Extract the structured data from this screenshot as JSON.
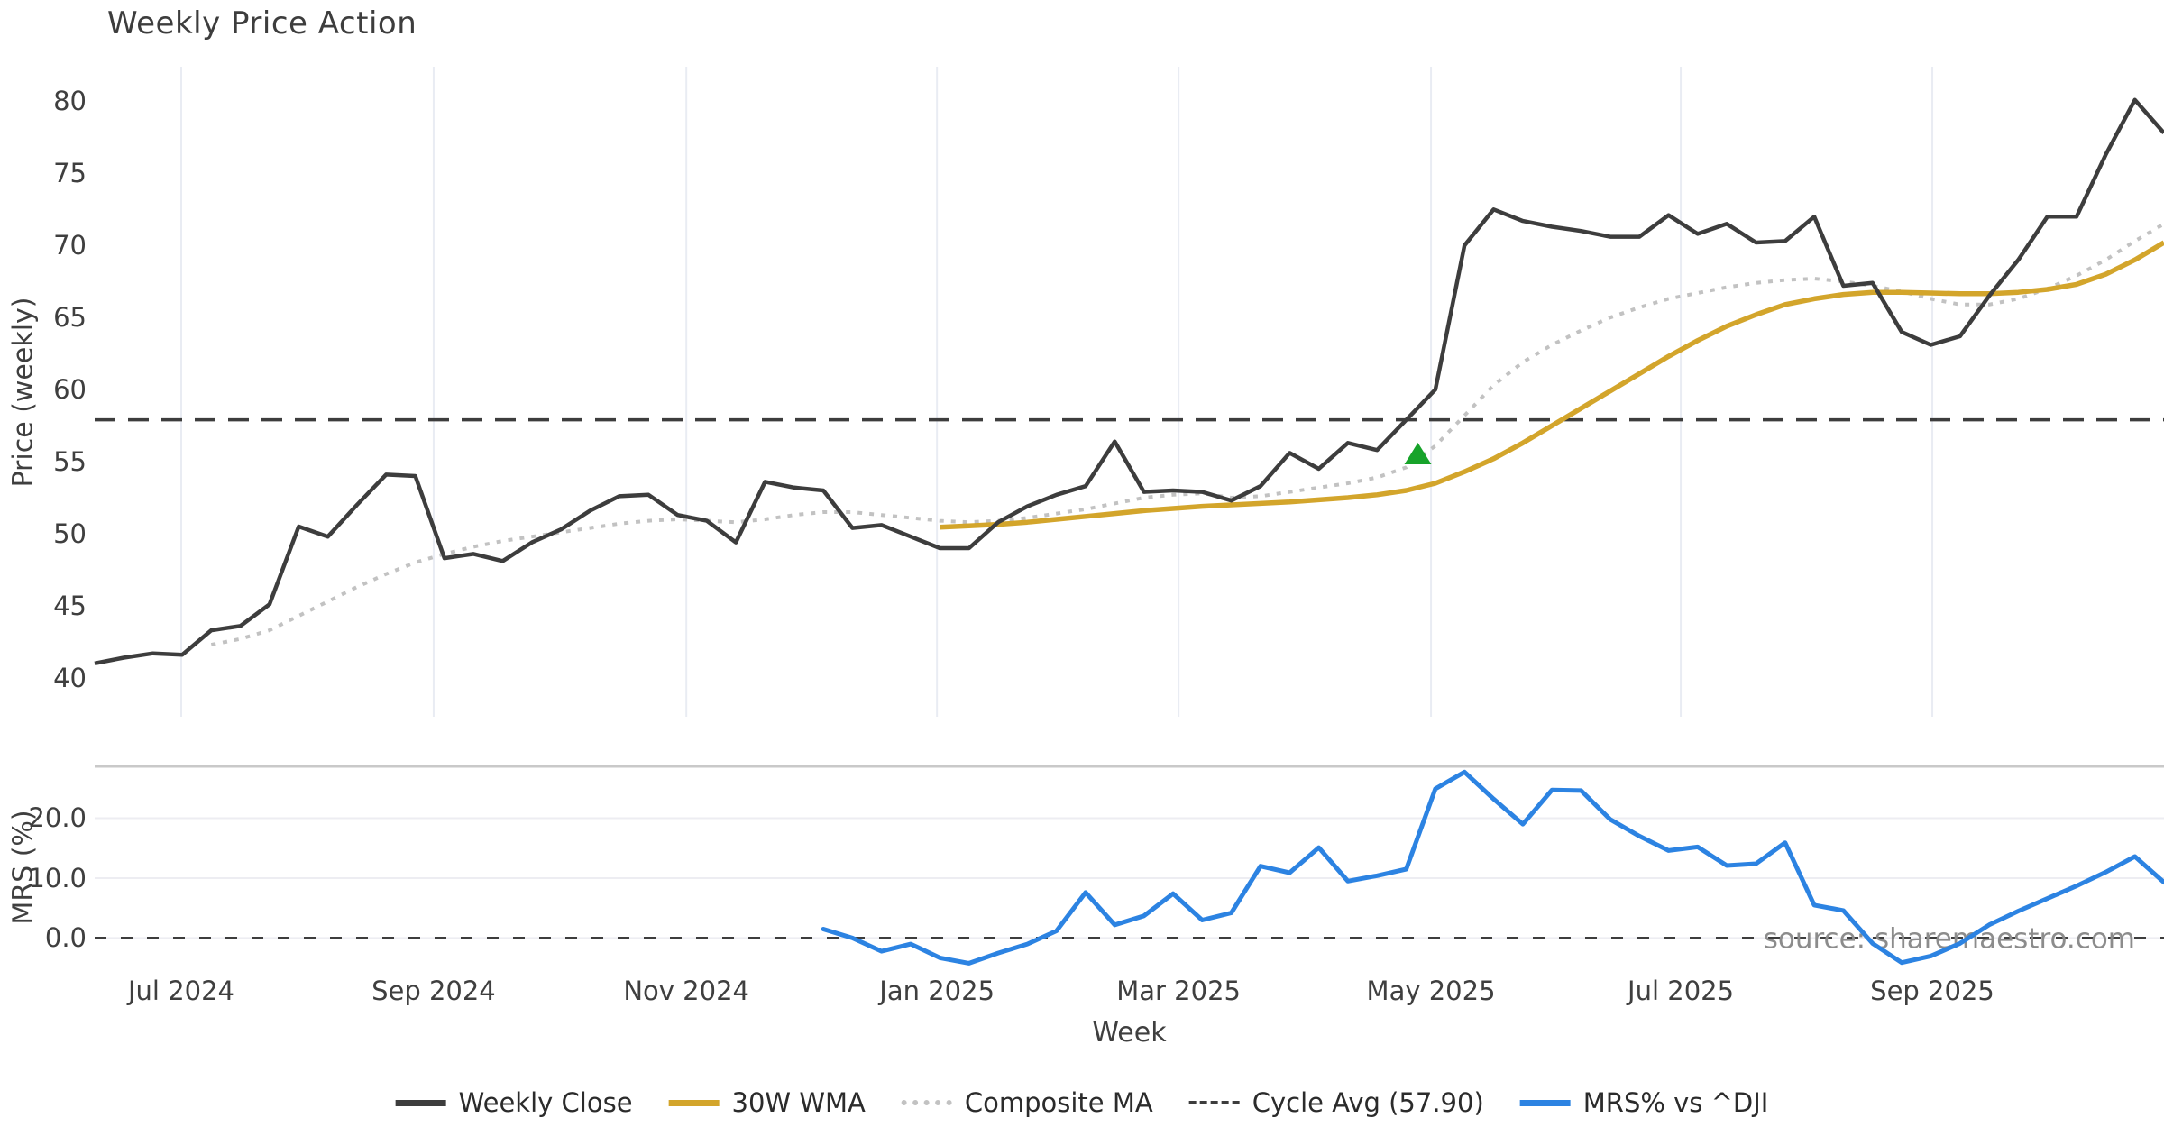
{
  "chart_data": {
    "type": "line",
    "title": "Weekly Price Action",
    "xlabel": "Week",
    "watermark": "source: sharemaestro.com",
    "x_ticks": [
      {
        "label": "Jul 2024",
        "week": 2.97
      },
      {
        "label": "Sep 2024",
        "week": 11.63
      },
      {
        "label": "Nov 2024",
        "week": 20.3
      },
      {
        "label": "Jan 2025",
        "week": 28.9
      },
      {
        "label": "Mar 2025",
        "week": 37.19
      },
      {
        "label": "May 2025",
        "week": 45.85
      },
      {
        "label": "Jul 2025",
        "week": 54.42
      },
      {
        "label": "Sep 2025",
        "week": 63.05
      }
    ],
    "panels": [
      {
        "id": "price",
        "ylabel": "Price (weekly)",
        "yticks": [
          "80",
          "75",
          "70",
          "65",
          "60",
          "55",
          "50",
          "45",
          "40"
        ],
        "ytick_values": [
          80,
          75,
          70,
          65,
          60,
          55,
          50,
          45,
          40
        ],
        "ylim": [
          37.3,
          82.4
        ],
        "grid": "vertical"
      },
      {
        "id": "mrs",
        "ylabel": "MRS (%)",
        "yticks": [
          "20.0",
          "10.0",
          "0.0"
        ],
        "ytick_values": [
          20,
          10,
          0
        ],
        "ylim": [
          -5.2,
          28.65
        ],
        "grid": "horizontal"
      }
    ],
    "cycle_avg_value": 57.9,
    "series": [
      {
        "name": "Weekly Close",
        "panel": "price",
        "style": "solid",
        "color": "#3d3d3d",
        "width": 4.5,
        "start_week": 0,
        "values": [
          41.0,
          41.4,
          41.7,
          41.6,
          43.3,
          43.6,
          45.1,
          50.5,
          49.8,
          52.0,
          54.1,
          54.0,
          48.3,
          48.6,
          48.1,
          49.4,
          50.3,
          51.6,
          52.6,
          52.7,
          51.3,
          50.9,
          49.4,
          53.6,
          53.2,
          53.0,
          50.4,
          50.6,
          49.8,
          49.0,
          49.0,
          50.8,
          51.9,
          52.7,
          53.3,
          56.4,
          52.9,
          53.0,
          52.9,
          52.3,
          53.3,
          55.6,
          54.5,
          56.3,
          55.8,
          57.9,
          60.0,
          70.0,
          72.5,
          71.7,
          71.3,
          71.0,
          70.6,
          70.6,
          72.1,
          70.8,
          71.5,
          70.2,
          70.3,
          72.0,
          67.2,
          67.4,
          64.0,
          63.1,
          63.7,
          66.5,
          69.0,
          72.0,
          72.0,
          76.3,
          80.1,
          77.8
        ]
      },
      {
        "name": "30W WMA",
        "panel": "price",
        "style": "solid",
        "color": "#d3a52b",
        "width": 5.5,
        "start_week": 29,
        "values": [
          50.45,
          50.55,
          50.65,
          50.8,
          51.0,
          51.2,
          51.4,
          51.6,
          51.75,
          51.9,
          52.0,
          52.1,
          52.2,
          52.35,
          52.5,
          52.7,
          53.0,
          53.5,
          54.3,
          55.2,
          56.3,
          57.5,
          58.7,
          59.9,
          61.1,
          62.3,
          63.4,
          64.4,
          65.2,
          65.9,
          66.3,
          66.6,
          66.75,
          66.75,
          66.7,
          66.65,
          66.65,
          66.75,
          66.95,
          67.3,
          68.0,
          69.0,
          70.2
        ]
      },
      {
        "name": "Composite MA",
        "panel": "price",
        "style": "dotted",
        "color": "#c2c2c2",
        "width": 4,
        "start_week": 4,
        "values": [
          42.3,
          42.7,
          43.3,
          44.3,
          45.3,
          46.3,
          47.2,
          48.0,
          48.6,
          49.1,
          49.5,
          49.8,
          50.1,
          50.4,
          50.7,
          50.9,
          51.0,
          50.9,
          50.8,
          51.0,
          51.3,
          51.5,
          51.5,
          51.3,
          51.1,
          50.9,
          50.8,
          50.9,
          51.1,
          51.4,
          51.7,
          52.1,
          52.5,
          52.7,
          52.8,
          52.5,
          52.6,
          52.9,
          53.2,
          53.5,
          53.9,
          54.6,
          56.1,
          58.2,
          60.3,
          61.9,
          63.1,
          64.1,
          65.0,
          65.7,
          66.3,
          66.7,
          67.1,
          67.4,
          67.6,
          67.7,
          67.5,
          67.2,
          66.8,
          66.3,
          65.9,
          65.9,
          66.3,
          67.0,
          67.9,
          69.0,
          70.3,
          71.5
        ]
      },
      {
        "name": "Cycle Avg (57.90)",
        "panel": "price",
        "style": "dashed",
        "color": "#3d3d3d",
        "width": 3.5,
        "start_week": 0,
        "constant": 57.9,
        "values": []
      },
      {
        "name": "MRS% vs ^DJI",
        "panel": "mrs",
        "style": "solid",
        "color": "#2c83e2",
        "width": 5,
        "start_week": 25,
        "values": [
          1.5,
          0.0,
          -2.2,
          -1.0,
          -3.3,
          -4.2,
          -2.5,
          -1.0,
          1.2,
          7.6,
          2.2,
          3.7,
          7.4,
          3.0,
          4.2,
          12.0,
          10.9,
          15.1,
          9.5,
          10.4,
          11.5,
          24.9,
          27.7,
          23.2,
          19.0,
          24.7,
          24.6,
          19.8,
          17.0,
          14.6,
          15.2,
          12.1,
          12.4,
          15.9,
          5.5,
          4.6,
          -0.9,
          -4.1,
          -3.0,
          -0.9,
          2.2,
          4.5,
          6.6,
          8.7,
          11.0,
          13.6,
          9.3
        ]
      }
    ],
    "marker": {
      "name": "buy-signal",
      "shape": "triangle-up",
      "color": "#17a32a",
      "week": 45.4,
      "value": 55.5
    },
    "zero_line": {
      "panel": "mrs",
      "value": 0
    },
    "legend": [
      {
        "label": "Weekly Close",
        "style": "solid",
        "color": "#3d3d3d"
      },
      {
        "label": "30W WMA",
        "style": "solid",
        "color": "#d3a52b"
      },
      {
        "label": "Composite MA",
        "style": "dotted",
        "color": "#c2c2c2"
      },
      {
        "label": "Cycle Avg (57.90)",
        "style": "dashed",
        "color": "#3d3d3d"
      },
      {
        "label": "MRS% vs ^DJI",
        "style": "solid",
        "color": "#2c83e2"
      }
    ],
    "colors": {
      "grid_vertical": "#e9ecf3",
      "grid_horizontal": "#ededf2",
      "panel_spine": "#c9c9c9",
      "watermark": "#8c8c8c",
      "text": "#3f3f3f",
      "title": "#3d3d3d"
    }
  }
}
